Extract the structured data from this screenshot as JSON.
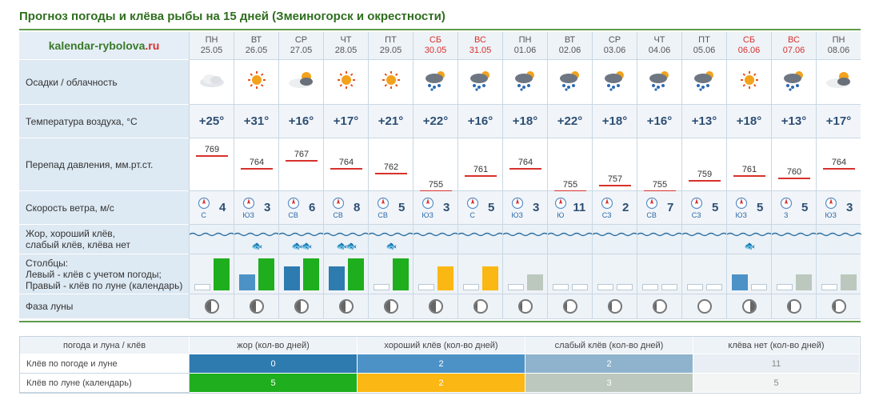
{
  "title": "Прогноз погоды и клёва рыбы на 15 дней (Змеиногорск и окрестности)",
  "logo": {
    "main": "kalendar-rybolova",
    "tld": ".ru"
  },
  "labels": {
    "clouds": "Осадки / облачность",
    "temp": "Температура воздуха, °С",
    "pressure": "Перепад давления, мм.рт.ст.",
    "wind": "Скорость ветра, м/с",
    "bite1": "Жор, хороший клёв,",
    "bite2": "слабый клёв, клёва нет",
    "bars1": "Столбцы:",
    "bars2": "Левый - клёв с учетом погоды;",
    "bars3": "Правый - клёв по луне (календарь)",
    "moon": "Фаза луны"
  },
  "colors": {
    "good_weather": "#4d92c6",
    "top_weather": "#2e7bb0",
    "weak_weather": "#8fb3cc",
    "moon_top": "#1eae1e",
    "moon_good": "#fbb713",
    "moon_weak": "#bcc8bd",
    "pressure_line": "#d8312c"
  },
  "days": [
    {
      "dow": "ПН",
      "date": "25.05",
      "we": false,
      "sky": "cloud",
      "temp": "+25°",
      "press": "769",
      "dir": "С",
      "spd": "4",
      "fish": "",
      "w": 0,
      "m": 4,
      "moon": "waning"
    },
    {
      "dow": "ВТ",
      "date": "26.05",
      "we": false,
      "sky": "sun",
      "temp": "+31°",
      "press": "764",
      "dir": "ЮЗ",
      "spd": "3",
      "fish": "🐟",
      "w": 2,
      "m": 4,
      "moon": "waning"
    },
    {
      "dow": "СР",
      "date": "27.05",
      "we": false,
      "sky": "suncloud",
      "temp": "+16°",
      "press": "767",
      "dir": "СВ",
      "spd": "6",
      "fish": "🐟🐟",
      "w": 3,
      "m": 4,
      "moon": "waning"
    },
    {
      "dow": "ЧТ",
      "date": "28.05",
      "we": false,
      "sky": "sun",
      "temp": "+17°",
      "press": "764",
      "dir": "СВ",
      "spd": "8",
      "fish": "🐟🐟",
      "w": 3,
      "m": 4,
      "moon": "waning"
    },
    {
      "dow": "ПТ",
      "date": "29.05",
      "we": false,
      "sky": "sun",
      "temp": "+21°",
      "press": "762",
      "dir": "СВ",
      "spd": "5",
      "fish": "🐟",
      "w": 0,
      "m": 4,
      "moon": "waning"
    },
    {
      "dow": "СБ",
      "date": "30.05",
      "we": true,
      "sky": "rain",
      "temp": "+22°",
      "press": "755",
      "dir": "ЮЗ",
      "spd": "3",
      "fish": "",
      "w": 0,
      "m": 3,
      "moon": "half"
    },
    {
      "dow": "ВС",
      "date": "31.05",
      "we": true,
      "sky": "rain",
      "temp": "+16°",
      "press": "761",
      "dir": "С",
      "spd": "5",
      "fish": "",
      "w": 0,
      "m": 3,
      "moon": "crescent"
    },
    {
      "dow": "ПН",
      "date": "01.06",
      "we": false,
      "sky": "rain",
      "temp": "+18°",
      "press": "764",
      "dir": "ЮЗ",
      "spd": "3",
      "fish": "",
      "w": 0,
      "m": 2,
      "moon": "crescent"
    },
    {
      "dow": "ВТ",
      "date": "02.06",
      "we": false,
      "sky": "rain",
      "temp": "+22°",
      "press": "755",
      "dir": "Ю",
      "spd": "11",
      "fish": "",
      "w": 0,
      "m": 0,
      "moon": "crescent"
    },
    {
      "dow": "СР",
      "date": "03.06",
      "we": false,
      "sky": "rain",
      "temp": "+18°",
      "press": "757",
      "dir": "СЗ",
      "spd": "2",
      "fish": "",
      "w": 0,
      "m": 0,
      "moon": "crescent"
    },
    {
      "dow": "ЧТ",
      "date": "04.06",
      "we": false,
      "sky": "rain",
      "temp": "+16°",
      "press": "755",
      "dir": "СВ",
      "spd": "7",
      "fish": "",
      "w": 0,
      "m": 0,
      "moon": "crescent"
    },
    {
      "dow": "ПТ",
      "date": "05.06",
      "we": false,
      "sky": "rain",
      "temp": "+13°",
      "press": "759",
      "dir": "СЗ",
      "spd": "5",
      "fish": "",
      "w": 0,
      "m": 0,
      "moon": "full"
    },
    {
      "dow": "СБ",
      "date": "06.06",
      "we": true,
      "sky": "sun",
      "temp": "+18°",
      "press": "761",
      "dir": "ЮЗ",
      "spd": "5",
      "fish": "🐟",
      "w": 2,
      "m": 0,
      "moon": "waxing"
    },
    {
      "dow": "ВС",
      "date": "07.06",
      "we": true,
      "sky": "rain",
      "temp": "+13°",
      "press": "760",
      "dir": "З",
      "spd": "5",
      "fish": "",
      "w": 0,
      "m": 2,
      "moon": "crescent"
    },
    {
      "dow": "ПН",
      "date": "08.06",
      "we": false,
      "sky": "suncloud",
      "temp": "+17°",
      "press": "764",
      "dir": "ЮЗ",
      "spd": "3",
      "fish": "",
      "w": 0,
      "m": 2,
      "moon": "crescent"
    }
  ],
  "summary": {
    "headers": [
      "погода и луна / клёв",
      "жор (кол-во дней)",
      "хороший клёв (кол-во дней)",
      "слабый клёв (кол-во дней)",
      "клёва нет (кол-во дней)"
    ],
    "rows": [
      {
        "label": "Клёв по погоде и луне",
        "values": [
          "0",
          "2",
          "2",
          "11"
        ]
      },
      {
        "label": "Клёв по луне (календарь)",
        "values": [
          "5",
          "2",
          "3",
          "5"
        ]
      }
    ]
  }
}
